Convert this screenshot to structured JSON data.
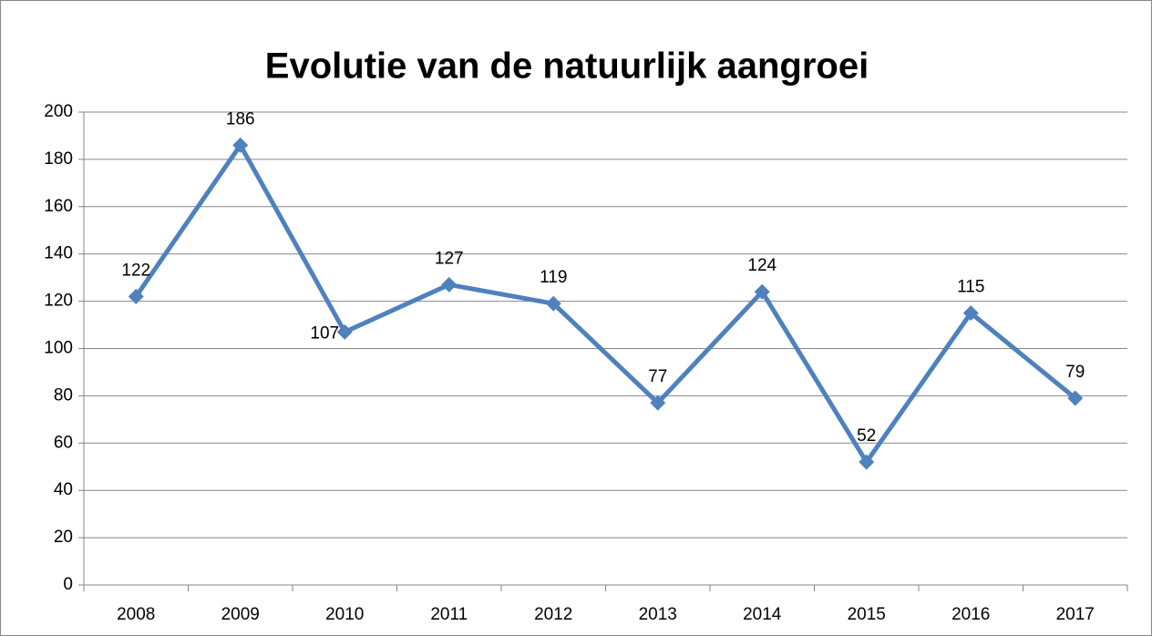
{
  "chart_data": {
    "type": "line",
    "title": "Evolutie van de natuurlijk aangroei",
    "categories": [
      "2008",
      "2009",
      "2010",
      "2011",
      "2012",
      "2013",
      "2014",
      "2015",
      "2016",
      "2017"
    ],
    "values": [
      122,
      186,
      107,
      127,
      119,
      77,
      124,
      52,
      115,
      79
    ],
    "color": "#4f81bd",
    "ylim": [
      0,
      200
    ],
    "yticks": [
      0,
      20,
      40,
      60,
      80,
      100,
      120,
      140,
      160,
      180,
      200
    ],
    "grid": true
  }
}
